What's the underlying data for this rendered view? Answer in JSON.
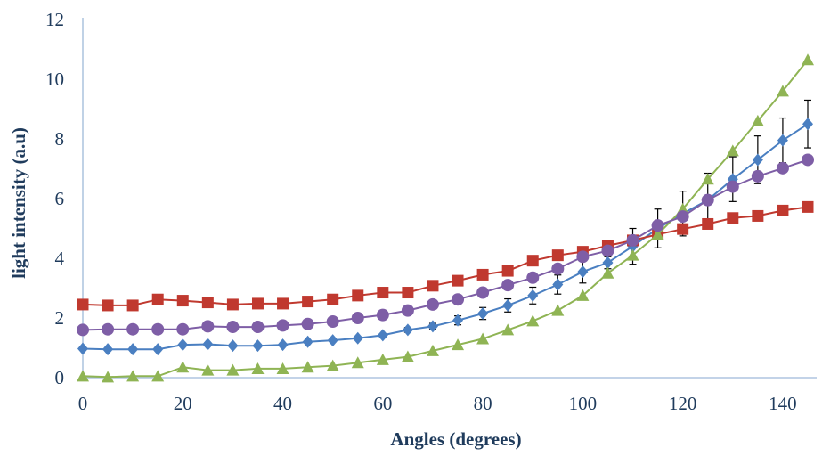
{
  "chart_data": {
    "type": "line",
    "title": "",
    "xlabel": "Angles (degrees)",
    "ylabel": "light intensity (a.u)",
    "xlim": [
      0,
      145
    ],
    "ylim": [
      0,
      12
    ],
    "xticks": [
      0,
      20,
      40,
      60,
      80,
      100,
      120,
      140
    ],
    "yticks": [
      0,
      2,
      4,
      6,
      8,
      10,
      12
    ],
    "grid": false,
    "legend": "none",
    "x": [
      0,
      5,
      10,
      15,
      20,
      25,
      30,
      35,
      40,
      45,
      50,
      55,
      60,
      65,
      70,
      75,
      80,
      85,
      90,
      95,
      100,
      105,
      110,
      115,
      120,
      125,
      130,
      135,
      140,
      145
    ],
    "series": [
      {
        "marker": "diamond",
        "color": "#4a7fc1",
        "values": [
          0.97,
          0.95,
          0.95,
          0.95,
          1.1,
          1.12,
          1.07,
          1.07,
          1.1,
          1.2,
          1.25,
          1.32,
          1.42,
          1.6,
          1.72,
          1.92,
          2.15,
          2.42,
          2.75,
          3.12,
          3.55,
          3.85,
          4.4,
          5.0,
          5.5,
          5.95,
          6.65,
          7.3,
          7.95,
          8.5
        ],
        "error": [
          0.05,
          0.05,
          0.05,
          0.05,
          0.05,
          0.05,
          0.05,
          0.05,
          0.05,
          0.05,
          0.05,
          0.05,
          0.05,
          0.08,
          0.1,
          0.15,
          0.2,
          0.22,
          0.28,
          0.32,
          0.38,
          0.2,
          0.6,
          0.65,
          0.75,
          0.9,
          0.75,
          0.8,
          0.75,
          0.8
        ]
      },
      {
        "marker": "square",
        "color": "#c0392f",
        "values": [
          2.45,
          2.42,
          2.42,
          2.62,
          2.58,
          2.52,
          2.45,
          2.48,
          2.48,
          2.55,
          2.62,
          2.75,
          2.85,
          2.85,
          3.08,
          3.25,
          3.45,
          3.58,
          3.92,
          4.1,
          4.22,
          4.42,
          4.6,
          4.8,
          4.98,
          5.15,
          5.35,
          5.42,
          5.6,
          5.72
        ]
      },
      {
        "marker": "triangle",
        "color": "#8fb454",
        "values": [
          0.05,
          0.02,
          0.05,
          0.05,
          0.35,
          0.25,
          0.25,
          0.3,
          0.3,
          0.35,
          0.4,
          0.5,
          0.6,
          0.7,
          0.9,
          1.1,
          1.3,
          1.6,
          1.9,
          2.25,
          2.75,
          3.5,
          4.1,
          4.8,
          5.65,
          6.65,
          7.6,
          8.6,
          9.6,
          10.65
        ]
      },
      {
        "marker": "circle",
        "color": "#7e5ea6",
        "values": [
          1.6,
          1.62,
          1.62,
          1.62,
          1.62,
          1.72,
          1.7,
          1.7,
          1.75,
          1.8,
          1.88,
          2.0,
          2.1,
          2.25,
          2.45,
          2.62,
          2.85,
          3.1,
          3.35,
          3.65,
          4.05,
          4.25,
          4.6,
          5.1,
          5.4,
          5.95,
          6.4,
          6.75,
          7.02,
          7.3
        ]
      }
    ]
  }
}
